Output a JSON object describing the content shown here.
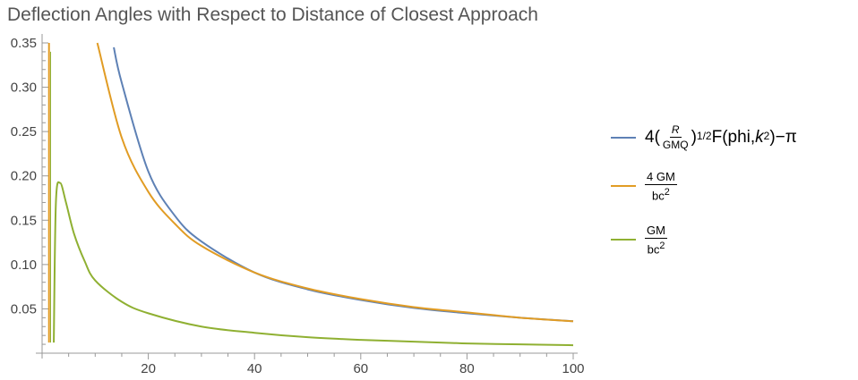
{
  "chart_data": {
    "type": "line",
    "title": "Deflection Angles with Respect to Distance of Closest Approach",
    "xlabel": "",
    "ylabel": "",
    "xlim": [
      0,
      100
    ],
    "ylim": [
      0,
      0.35
    ],
    "x_ticks": [
      "20",
      "40",
      "60",
      "80",
      "100"
    ],
    "y_ticks": [
      "0.05",
      "0.10",
      "0.15",
      "0.20",
      "0.25",
      "0.30",
      "0.35"
    ],
    "grid": false,
    "legend_position": "right",
    "series": [
      {
        "name": "4(R/GMQ)^1/2 F(phi,k^2)−π",
        "color": "#5e81b5",
        "x": [
          13.5,
          15,
          20,
          25,
          30,
          40,
          50,
          60,
          70,
          80,
          90,
          100
        ],
        "y": [
          0.345,
          0.305,
          0.205,
          0.155,
          0.126,
          0.091,
          0.072,
          0.06,
          0.051,
          0.045,
          0.04,
          0.036
        ]
      },
      {
        "name": "4GM/bc^2",
        "color": "#e19c24",
        "x": [
          10.4,
          15,
          20,
          25,
          30,
          40,
          50,
          60,
          70,
          80,
          90,
          100
        ],
        "y": [
          0.35,
          0.243,
          0.182,
          0.146,
          0.121,
          0.091,
          0.073,
          0.061,
          0.052,
          0.046,
          0.04,
          0.036
        ]
      },
      {
        "name": "GM/bc^2",
        "color": "#8fb032",
        "x": [
          2.2,
          2.6,
          3.4,
          4.5,
          6,
          8,
          10,
          15,
          20,
          30,
          40,
          50,
          60,
          70,
          80,
          90,
          100
        ],
        "y": [
          0.012,
          0.17,
          0.192,
          0.17,
          0.135,
          0.104,
          0.082,
          0.058,
          0.045,
          0.03,
          0.023,
          0.018,
          0.015,
          0.013,
          0.011,
          0.01,
          0.009
        ]
      }
    ],
    "extra_marks": {
      "orange_spike": {
        "x": [
          1.3,
          1.3,
          2.6
        ],
        "y": [
          0.35,
          0.012,
          0.35
        ]
      }
    }
  },
  "legend": {
    "item1": {
      "four": "4(",
      "num": "R",
      "den": "GMQ",
      "sup1": "1/2",
      "func": "F(phi,",
      "k": "k",
      "sup2": "2",
      "tail": ")−π"
    },
    "item2": {
      "num": "4 GM",
      "den": "bc",
      "sup": "2"
    },
    "item3": {
      "num": "GM",
      "den": "bc",
      "sup": "2"
    }
  }
}
